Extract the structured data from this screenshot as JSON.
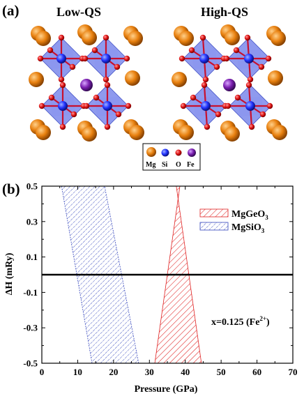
{
  "panel_a": {
    "label": "(a)",
    "left_title": "Low-QS",
    "right_title": "High-QS",
    "legend": [
      {
        "label": "Mg",
        "color": "#e8800f"
      },
      {
        "label": "Si",
        "color": "#2233ff"
      },
      {
        "label": "O",
        "color": "#e01515"
      },
      {
        "label": "Fe",
        "color": "#7b1fb0"
      }
    ],
    "colors": {
      "polyhedron": "#6a78e8",
      "bond": "#c8102e"
    }
  },
  "panel_b": {
    "label": "(b)",
    "annotation_main": "x=0.125 (Fe",
    "annotation_sup": "2+",
    "annotation_end": ")"
  },
  "chart_data": {
    "type": "area",
    "xlabel": "Pressure (GPa)",
    "ylabel": "ΔH (mRy)",
    "xlim": [
      0,
      70
    ],
    "ylim": [
      -0.5,
      0.5
    ],
    "xticks": [
      "0",
      "10",
      "20",
      "30",
      "40",
      "50",
      "60",
      "70"
    ],
    "yticks": [
      "-0.5",
      "-0.3",
      "-0.1",
      "0.1",
      "0.3",
      "0.5"
    ],
    "legend_position": "top-right",
    "reference_line_y": 0,
    "series": [
      {
        "name": "MgGeO",
        "name_sub": "3",
        "color": "#e02020",
        "hatch": "diagonal",
        "left_edge": [
          [
            31.5,
            -0.5
          ],
          [
            38.5,
            0.5
          ]
        ],
        "right_edge": [
          [
            44.5,
            -0.5
          ],
          [
            37.5,
            0.5
          ]
        ]
      },
      {
        "name": "MgSiO",
        "name_sub": "3",
        "color": "#3344bb",
        "hatch": "diagonal",
        "left_edge": [
          [
            14.0,
            -0.5
          ],
          [
            5.5,
            0.5
          ]
        ],
        "right_edge": [
          [
            27.0,
            -0.5
          ],
          [
            17.5,
            0.5
          ]
        ]
      }
    ]
  }
}
